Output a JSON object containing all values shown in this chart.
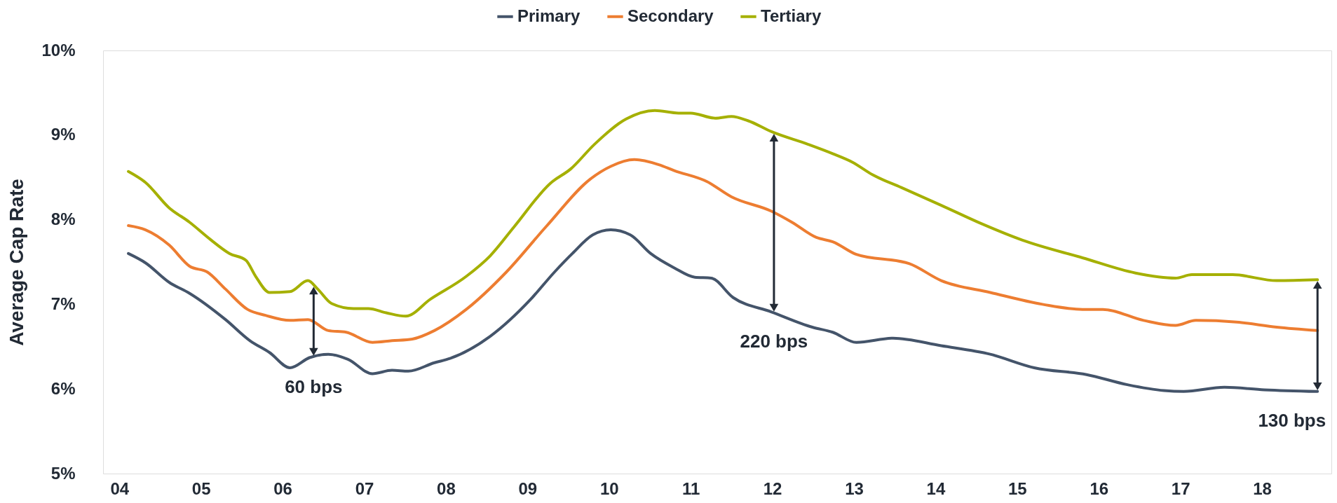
{
  "chart_data": {
    "type": "line",
    "ylabel": "Average Cap Rate",
    "legend": "top",
    "line_style": "solid",
    "grid": false,
    "xlim": [
      2003.8,
      2018.85
    ],
    "xticks": [
      {
        "value": 2004,
        "label": "04"
      },
      {
        "value": 2005,
        "label": "05"
      },
      {
        "value": 2006,
        "label": "06"
      },
      {
        "value": 2007,
        "label": "07"
      },
      {
        "value": 2008,
        "label": "08"
      },
      {
        "value": 2009,
        "label": "09"
      },
      {
        "value": 2010,
        "label": "10"
      },
      {
        "value": 2011,
        "label": "11"
      },
      {
        "value": 2012,
        "label": "12"
      },
      {
        "value": 2013,
        "label": "13"
      },
      {
        "value": 2014,
        "label": "14"
      },
      {
        "value": 2015,
        "label": "15"
      },
      {
        "value": 2016,
        "label": "16"
      },
      {
        "value": 2017,
        "label": "17"
      },
      {
        "value": 2018,
        "label": "18"
      }
    ],
    "ylim": [
      5,
      10
    ],
    "yticks": [
      {
        "value": 5,
        "label": "5%"
      },
      {
        "value": 6,
        "label": "6%"
      },
      {
        "value": 7,
        "label": "7%"
      },
      {
        "value": 8,
        "label": "8%"
      },
      {
        "value": 9,
        "label": "9%"
      },
      {
        "value": 10,
        "label": "10%"
      }
    ],
    "series": [
      {
        "name": "Primary",
        "color": "#44546a",
        "x": [
          2004.11,
          2004.32,
          2004.61,
          2004.86,
          2005.3,
          2005.6,
          2005.84,
          2006.09,
          2006.33,
          2006.56,
          2006.8,
          2007.1,
          2007.34,
          2007.54,
          2007.86,
          2008.05,
          2008.54,
          2009.04,
          2009.33,
          2009.55,
          2009.8,
          2010.02,
          2010.26,
          2010.51,
          2010.8,
          2011.05,
          2011.25,
          2011.52,
          2011.99,
          2012.49,
          2012.74,
          2013.03,
          2013.48,
          2014.07,
          2014.67,
          2015.21,
          2015.85,
          2016.35,
          2016.8,
          2017.04,
          2017.54,
          2018.03,
          2018.68
        ],
        "values": [
          7.6,
          7.49,
          7.26,
          7.13,
          6.82,
          6.57,
          6.43,
          6.25,
          6.37,
          6.41,
          6.35,
          6.18,
          6.22,
          6.21,
          6.31,
          6.36,
          6.62,
          7.06,
          7.38,
          7.6,
          7.82,
          7.88,
          7.82,
          7.6,
          7.43,
          7.32,
          7.31,
          7.08,
          6.91,
          6.73,
          6.67,
          6.55,
          6.6,
          6.51,
          6.41,
          6.25,
          6.17,
          6.05,
          5.98,
          5.97,
          6.02,
          5.99,
          5.97
        ]
      },
      {
        "name": "Secondary",
        "color": "#ed7d31",
        "x": [
          2004.11,
          2004.32,
          2004.61,
          2004.86,
          2005.08,
          2005.3,
          2005.57,
          2005.79,
          2006.09,
          2006.31,
          2006.56,
          2006.78,
          2007.1,
          2007.34,
          2007.59,
          2007.86,
          2008.25,
          2008.74,
          2009.23,
          2009.77,
          2010.02,
          2010.31,
          2010.61,
          2010.8,
          2011.2,
          2011.5,
          2011.99,
          2012.24,
          2012.54,
          2012.74,
          2013.03,
          2013.68,
          2014.07,
          2014.67,
          2015.31,
          2015.8,
          2016.05,
          2016.55,
          2016.94,
          2017.19,
          2017.69,
          2018.18,
          2018.68
        ],
        "values": [
          7.93,
          7.88,
          7.7,
          7.45,
          7.38,
          7.18,
          6.94,
          6.87,
          6.81,
          6.82,
          6.69,
          6.67,
          6.55,
          6.57,
          6.59,
          6.69,
          6.94,
          7.38,
          7.92,
          8.48,
          8.63,
          8.71,
          8.65,
          8.58,
          8.45,
          8.27,
          8.1,
          7.97,
          7.79,
          7.74,
          7.59,
          7.48,
          7.28,
          7.14,
          7.0,
          6.94,
          6.94,
          6.81,
          6.75,
          6.81,
          6.79,
          6.73,
          6.69
        ]
      },
      {
        "name": "Tertiary",
        "color": "#a5b000",
        "x": [
          2004.11,
          2004.32,
          2004.61,
          2004.86,
          2005.11,
          2005.35,
          2005.55,
          2005.67,
          2005.84,
          2006.09,
          2006.31,
          2006.43,
          2006.6,
          2006.87,
          2007.05,
          2007.27,
          2007.51,
          2007.81,
          2008.25,
          2008.54,
          2008.84,
          2009.28,
          2009.53,
          2009.82,
          2010.21,
          2010.56,
          2010.85,
          2011.0,
          2011.3,
          2011.5,
          2011.7,
          2011.99,
          2012.44,
          2012.74,
          2012.98,
          2013.23,
          2013.58,
          2014.07,
          2014.57,
          2015.06,
          2015.8,
          2016.45,
          2016.94,
          2017.14,
          2017.64,
          2018.18,
          2018.68
        ],
        "values": [
          8.57,
          8.44,
          8.14,
          7.97,
          7.77,
          7.6,
          7.52,
          7.33,
          7.14,
          7.15,
          7.28,
          7.18,
          7.01,
          6.95,
          6.95,
          6.9,
          6.86,
          7.06,
          7.33,
          7.57,
          7.92,
          8.43,
          8.6,
          8.89,
          9.19,
          9.29,
          9.26,
          9.26,
          9.2,
          9.22,
          9.17,
          9.04,
          8.89,
          8.78,
          8.68,
          8.53,
          8.38,
          8.17,
          7.95,
          7.76,
          7.55,
          7.37,
          7.31,
          7.35,
          7.35,
          7.28,
          7.29
        ]
      }
    ],
    "annotations": [
      {
        "text": "60 bps",
        "x": 2006.38,
        "y": 6.37
      },
      {
        "text": "220 bps",
        "x": 2012.02,
        "y": 6.9
      },
      {
        "text": "130 bps",
        "x": 2018.68,
        "y": 5.97
      }
    ]
  }
}
